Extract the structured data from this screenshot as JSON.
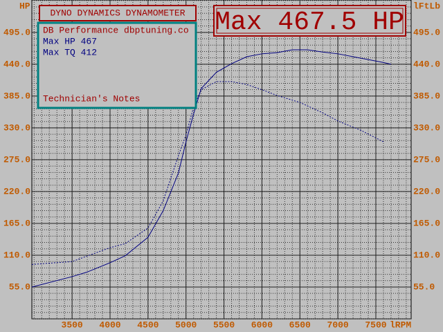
{
  "chart_data": {
    "type": "line",
    "title": "DYNO DYNAMICS DYNAMOMETER",
    "headline": "Max 467.5 HP",
    "info": [
      "DB Performance dbptuning.co",
      "Max HP 467",
      "Max TQ 412"
    ],
    "notes_title": "Technician's Notes",
    "y_label": "HP",
    "y2_label": "lFtLb",
    "x_label": "lRPM",
    "xlim": [
      2970,
      7965
    ],
    "xticks": [
      3500,
      4000,
      4500,
      5000,
      5500,
      6000,
      6500,
      7000,
      7500
    ],
    "ylim": [
      0,
      551
    ],
    "yticks": [
      {
        "value": 55,
        "label": "55.0"
      },
      {
        "value": 110,
        "label": "110.0"
      },
      {
        "value": 165,
        "label": "165.0"
      },
      {
        "value": 220,
        "label": "220.0"
      },
      {
        "value": 275,
        "label": "275.0"
      },
      {
        "value": 330,
        "label": "330.0"
      },
      {
        "value": 385,
        "label": "385.0"
      },
      {
        "value": 440,
        "label": "440.0"
      },
      {
        "value": 495,
        "label": "495.0"
      }
    ],
    "y2lim": [
      0,
      551
    ],
    "y2ticks": [
      {
        "value": 55,
        "label": "55.0"
      },
      {
        "value": 110,
        "label": "110.0"
      },
      {
        "value": 165,
        "label": "165.0"
      },
      {
        "value": 220,
        "label": "220.0"
      },
      {
        "value": 275,
        "label": "275.0"
      },
      {
        "value": 330,
        "label": "330.0"
      },
      {
        "value": 385,
        "label": "385.0"
      },
      {
        "value": 440,
        "label": "440.0"
      },
      {
        "value": 495,
        "label": "495.0"
      }
    ],
    "grid": true,
    "series": [
      {
        "color": "#000080",
        "style": "solid",
        "x": [
          2970,
          3500,
          3700,
          4000,
          4200,
          4500,
          4700,
          4900,
          5000,
          5100,
          5200,
          5400,
          5600,
          5800,
          6000,
          6200,
          6400,
          6600,
          6800,
          7000,
          7200,
          7400,
          7600,
          7700
        ],
        "values": [
          55,
          73,
          81,
          97,
          109,
          141,
          187,
          252,
          306,
          354,
          398,
          426,
          441,
          453,
          458,
          460,
          465,
          465,
          461,
          458,
          453,
          448,
          443,
          440
        ]
      },
      {
        "color": "#000080",
        "style": "dotted",
        "axis": "y2",
        "x": [
          2970,
          3500,
          4000,
          4200,
          4500,
          4700,
          4900,
          5000,
          5100,
          5200,
          5400,
          5600,
          5800,
          6000,
          6200,
          6500,
          6800,
          7000,
          7300,
          7600
        ],
        "values": [
          94,
          99,
          123,
          130,
          157,
          204,
          282,
          318,
          366,
          396,
          410,
          410,
          405,
          396,
          386,
          374,
          356,
          342,
          326,
          306
        ]
      }
    ]
  }
}
